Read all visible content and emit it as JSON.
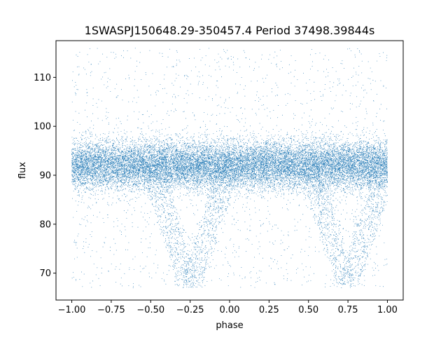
{
  "chart_data": {
    "type": "scatter",
    "title": "1SWASPJ150648.29-350457.4 Period 37498.39844s",
    "xlabel": "phase",
    "ylabel": "flux",
    "xlim": [
      -1.1,
      1.1
    ],
    "ylim": [
      64.5,
      117.5
    ],
    "x_ticks": [
      -1.0,
      -0.75,
      -0.5,
      -0.25,
      0.0,
      0.25,
      0.5,
      0.75,
      1.0
    ],
    "x_tick_labels": [
      "−1.00",
      "−0.75",
      "−0.50",
      "−0.25",
      "0.00",
      "0.25",
      "0.50",
      "0.75",
      "1.00"
    ],
    "y_ticks": [
      70,
      80,
      90,
      100,
      110
    ],
    "y_tick_labels": [
      "70",
      "80",
      "90",
      "100",
      "110"
    ],
    "grid": false,
    "legend": "none",
    "marker_color": "#1f77b4",
    "series": [
      {
        "phase_range": [
          -1.0,
          1.0
        ],
        "approx_points": 60000,
        "baseline_flux": 92,
        "baseline_band": [
          87,
          97
        ],
        "outlier_range": [
          67,
          116
        ],
        "eclipse_centers_phase": [
          -0.25,
          0.75
        ],
        "eclipse_min_flux": 67,
        "values": [
          [
            -1.0,
            92.1
          ],
          [
            -0.875,
            92.0
          ],
          [
            -0.75,
            91.9
          ],
          [
            -0.625,
            92.0
          ],
          [
            -0.5,
            91.8
          ],
          [
            -0.375,
            91.6
          ],
          [
            -0.25,
            91.5
          ],
          [
            -0.125,
            91.7
          ],
          [
            0.0,
            91.9
          ],
          [
            0.125,
            92.0
          ],
          [
            0.25,
            92.1
          ],
          [
            0.375,
            92.0
          ],
          [
            0.5,
            91.8
          ],
          [
            0.625,
            91.6
          ],
          [
            0.75,
            91.5
          ],
          [
            0.875,
            91.7
          ],
          [
            1.0,
            92.0
          ]
        ]
      }
    ]
  }
}
